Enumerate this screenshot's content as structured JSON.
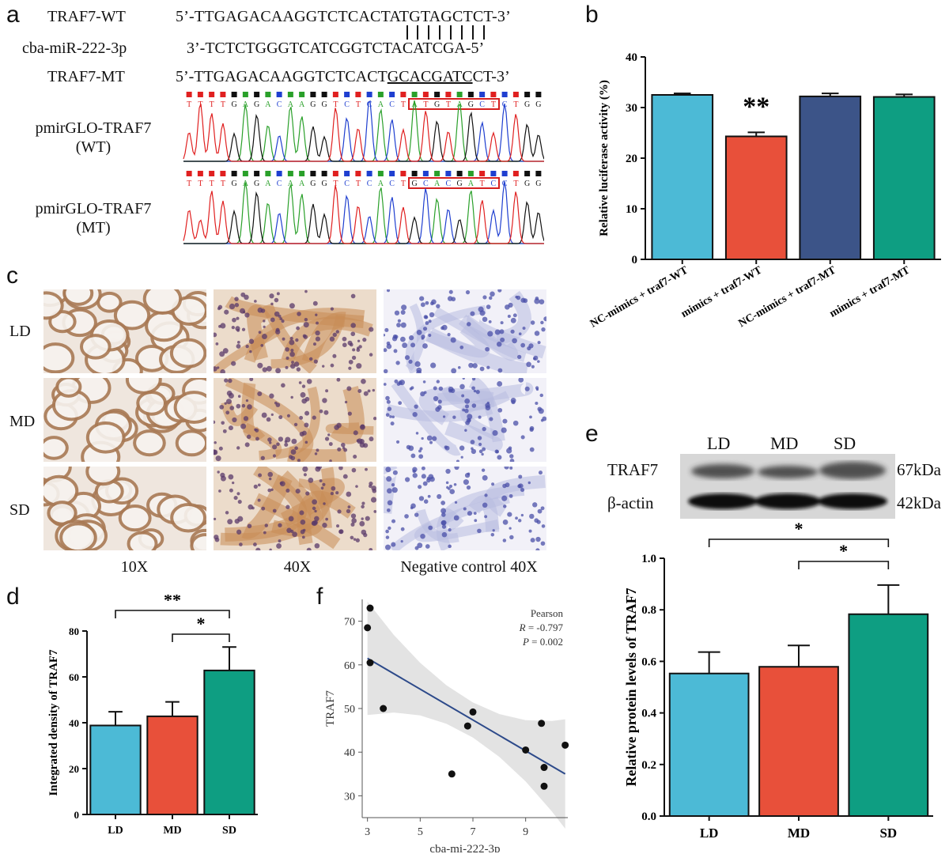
{
  "panels": {
    "a": {
      "label": "a",
      "seq_rows": [
        {
          "name": "TRAF7-WT",
          "seq": "5’-TTGAGACAAGGTCTCACTATGTAGCTCT-3’"
        },
        {
          "name": "cba-miR-222-3p",
          "seq": "3’-TCTCTGGGTCATCGGTCTACATCGA-5’"
        },
        {
          "name": "TRAF7-MT",
          "seq_prefix": "5’-TTGAGACAAGGTCTCACT",
          "seq_mut": "GCACGATC",
          "seq_suffix": "CT-3’"
        }
      ],
      "chrom_label_wt": [
        "pmirGLO-TRAF7",
        "(WT)"
      ],
      "chrom_label_mt": [
        "pmirGLO-TRAF7",
        "(MT)"
      ],
      "chrom_seq_wt": "TTTTGAGACAAGGTCTCACTATGTAGCTCTGG",
      "chrom_seq_mt": "TTTTGAGACAAGGTCTCACTGCACGATCCTGG",
      "base_colors": {
        "A": "#2aa02a",
        "C": "#1f3fd0",
        "G": "#111111",
        "T": "#e02020"
      }
    },
    "b": {
      "label": "b"
    },
    "c": {
      "label": "c",
      "rows": [
        "LD",
        "MD",
        "SD"
      ],
      "cols": [
        "10X",
        "40X",
        "Negative control 40X"
      ]
    },
    "d": {
      "label": "d"
    },
    "e": {
      "label": "e",
      "lanes": [
        "LD",
        "MD",
        "SD"
      ],
      "bands": [
        {
          "protein": "TRAF7",
          "size": "67kDa"
        },
        {
          "protein": "β-actin",
          "size": "42kDa"
        }
      ]
    },
    "f": {
      "label": "f"
    }
  },
  "chart_data": [
    {
      "id": "b",
      "type": "bar",
      "categories": [
        "NC-mimics + traf7-WT",
        "mimics + traf7-WT",
        "NC-mimics + traf7-MT",
        "mimics + traf7-MT"
      ],
      "values": [
        32.5,
        24.3,
        32.2,
        32.1
      ],
      "errors": [
        0.3,
        0.8,
        0.6,
        0.5
      ],
      "colors": [
        "#4cbad6",
        "#e8503a",
        "#3c5488",
        "#0e9e82"
      ],
      "ylabel": "Relative luciferase activity (%)",
      "ylim": [
        0,
        40
      ],
      "yticks": [
        0,
        10,
        20,
        30,
        40
      ],
      "annotations": [
        {
          "category": 1,
          "text": "**"
        }
      ]
    },
    {
      "id": "d",
      "type": "bar",
      "categories": [
        "LD",
        "MD",
        "SD"
      ],
      "values": [
        38.8,
        42.8,
        62.8
      ],
      "errors": [
        6.0,
        6.3,
        10.2
      ],
      "colors": [
        "#4cbad6",
        "#e8503a",
        "#0e9e82"
      ],
      "ylabel": "Integrated density of TRAF7",
      "ylim": [
        0,
        80
      ],
      "yticks": [
        0,
        20,
        40,
        60,
        80
      ],
      "significance": [
        {
          "from": 0,
          "to": 2,
          "text": "**"
        },
        {
          "from": 1,
          "to": 2,
          "text": "*"
        }
      ]
    },
    {
      "id": "e",
      "type": "bar",
      "categories": [
        "LD",
        "MD",
        "SD"
      ],
      "values": [
        0.553,
        0.579,
        0.783
      ],
      "errors": [
        0.083,
        0.083,
        0.113
      ],
      "colors": [
        "#4cbad6",
        "#e8503a",
        "#0e9e82"
      ],
      "ylabel": "Relative protein levels of TRAF7",
      "ylim": [
        0,
        1.0
      ],
      "yticks": [
        "0.0",
        "0.2",
        "0.4",
        "0.6",
        "0.8",
        "1.0"
      ],
      "significance": [
        {
          "from": 0,
          "to": 2,
          "text": "*"
        },
        {
          "from": 1,
          "to": 2,
          "text": "*"
        }
      ]
    },
    {
      "id": "f",
      "type": "scatter",
      "xlabel": "cba-mi-222-3p",
      "ylabel": "TRAF7",
      "xlim": [
        2.8,
        10.6
      ],
      "ylim": [
        25,
        75
      ],
      "xticks": [
        3,
        5,
        7,
        9
      ],
      "yticks": [
        30,
        40,
        50,
        60,
        70
      ],
      "points": [
        [
          3.0,
          68.5
        ],
        [
          3.1,
          73.0
        ],
        [
          3.1,
          60.5
        ],
        [
          3.6,
          50.0
        ],
        [
          6.2,
          35.0
        ],
        [
          6.8,
          46.0
        ],
        [
          7.0,
          49.2
        ],
        [
          9.0,
          40.5
        ],
        [
          9.6,
          46.6
        ],
        [
          9.7,
          36.5
        ],
        [
          9.7,
          32.2
        ],
        [
          10.5,
          41.6
        ]
      ],
      "fit": {
        "x": [
          3.0,
          10.5
        ],
        "y": [
          61.5,
          35.0
        ]
      },
      "stats": {
        "method": "Pearson",
        "R": "-0.797",
        "P": "0.002"
      },
      "colors": {
        "points": "#111111",
        "line": "#2d4a8a",
        "band": "#d9d9d9"
      }
    }
  ]
}
